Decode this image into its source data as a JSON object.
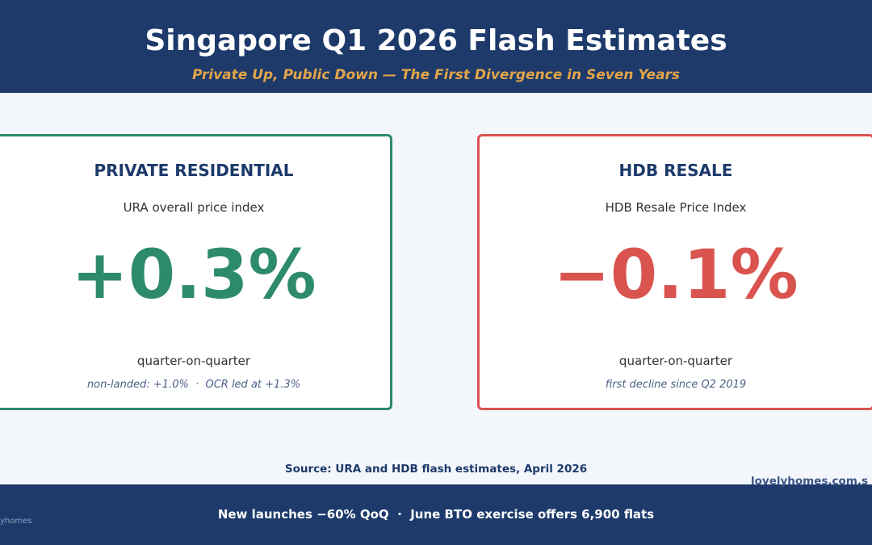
{
  "header": {
    "title": "Singapore Q1 2026 Flash Estimates",
    "subtitle": "Private Up, Public Down — The First Divergence in Seven Years"
  },
  "cards": [
    {
      "heading": "PRIVATE RESIDENTIAL",
      "index_name": "URA overall price index",
      "value": "+0.3%",
      "period": "quarter-on-quarter",
      "note": "non-landed: +1.0%  ·  OCR led at +1.3%"
    },
    {
      "heading": "HDB RESALE",
      "index_name": "HDB Resale Price Index",
      "value": "−0.1%",
      "period": "quarter-on-quarter",
      "note": "first decline since Q2 2019"
    }
  ],
  "source": "Source: URA and HDB flash estimates, April 2026",
  "watermark": "lovelyhomes.com.s",
  "footer": {
    "text": "New launches −60% QoQ  ·  June BTO exercise offers 6,900 flats",
    "brand": "yhomes"
  }
}
